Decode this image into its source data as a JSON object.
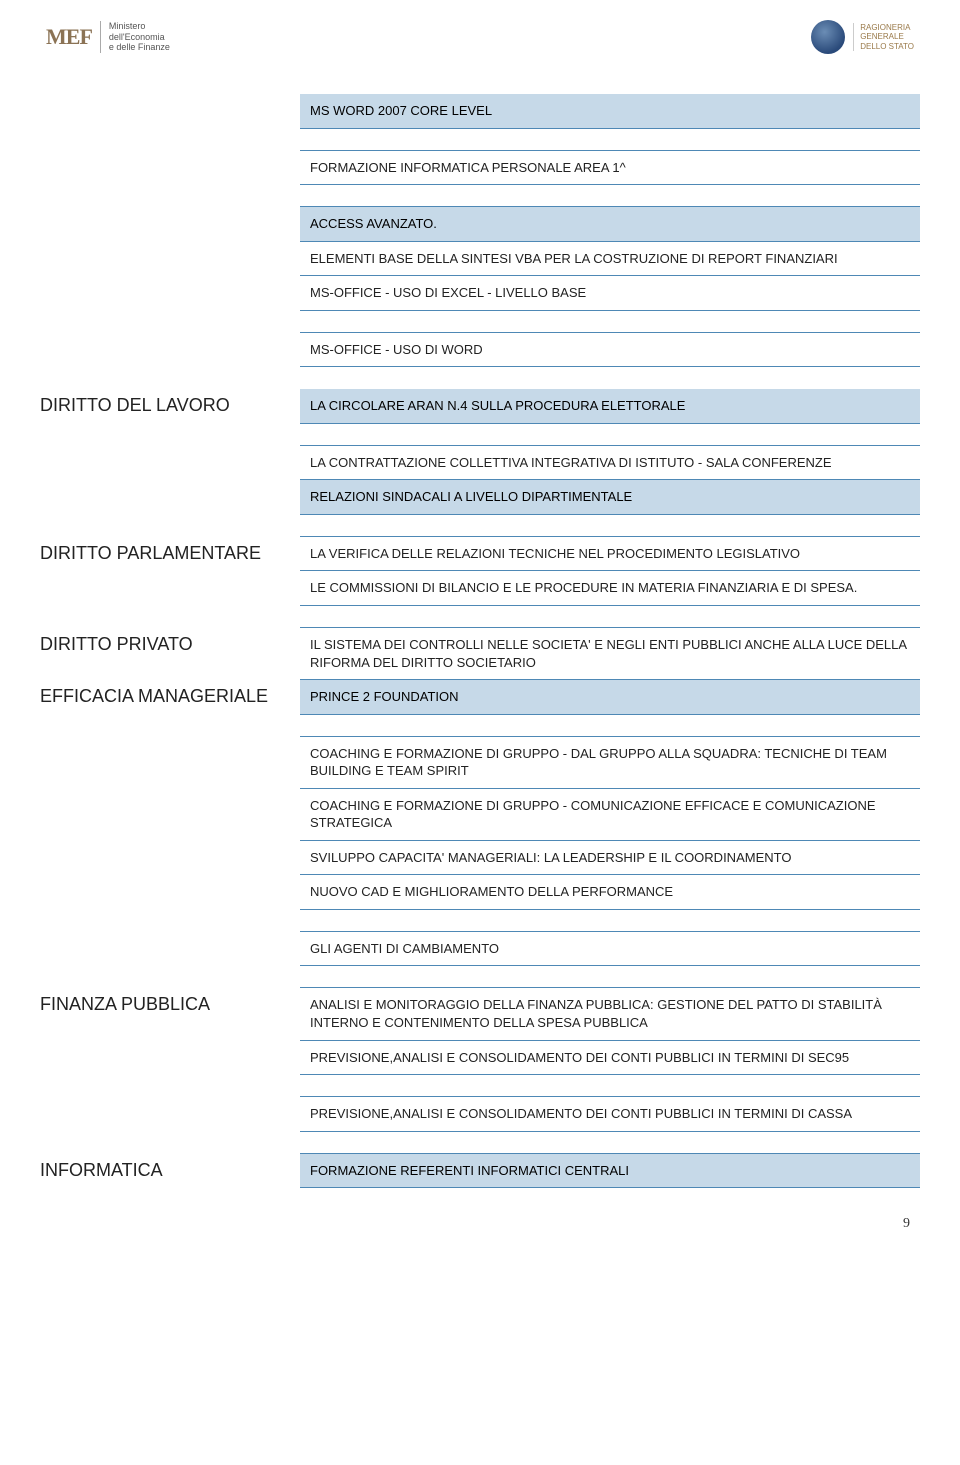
{
  "header": {
    "mef_mark": "MEF",
    "mef_text_l1": "Ministero",
    "mef_text_l2": "dell'Economia",
    "mef_text_l3": "e delle Finanze",
    "rgs_text_l1": "RAGIONERIA",
    "rgs_text_l2": "GENERALE",
    "rgs_text_l3": "DELLO STATO"
  },
  "colors": {
    "header_bg": "#c6d9e8",
    "border": "#4e88b5",
    "text": "#222222"
  },
  "rows": [
    {
      "left": "",
      "right_type": "header",
      "right": "MS WORD 2007 CORE LEVEL"
    },
    {
      "left": "",
      "right_type": "spacer"
    },
    {
      "left": "",
      "right_type": "cell",
      "right": "FORMAZIONE INFORMATICA PERSONALE AREA 1^"
    },
    {
      "left": "",
      "right_type": "spacer"
    },
    {
      "left": "",
      "right_type": "header",
      "right": "ACCESS AVANZATO."
    },
    {
      "left": "",
      "right_type": "cell",
      "right": "ELEMENTI BASE DELLA SINTESI VBA PER LA COSTRUZIONE DI REPORT FINANZIARI"
    },
    {
      "left": "",
      "right_type": "cell",
      "right": "MS-OFFICE - USO DI EXCEL - LIVELLO BASE"
    },
    {
      "left": "",
      "right_type": "spacer"
    },
    {
      "left": "",
      "right_type": "cell",
      "right": "MS-OFFICE - USO DI WORD"
    },
    {
      "left": "",
      "right_type": "gap"
    },
    {
      "left": "DIRITTO DEL LAVORO",
      "right_type": "header",
      "right": "LA CIRCOLARE ARAN N.4 SULLA PROCEDURA ELETTORALE"
    },
    {
      "left": "",
      "right_type": "spacer"
    },
    {
      "left": "",
      "right_type": "cell",
      "right": "LA CONTRATTAZIONE COLLETTIVA INTEGRATIVA DI ISTITUTO - SALA CONFERENZE"
    },
    {
      "left": "",
      "right_type": "header",
      "right": "RELAZIONI SINDACALI A LIVELLO DIPARTIMENTALE"
    },
    {
      "left": "",
      "right_type": "spacer"
    },
    {
      "left": "DIRITTO PARLAMENTARE",
      "right_type": "cell",
      "right": "LA VERIFICA DELLE RELAZIONI TECNICHE NEL PROCEDIMENTO LEGISLATIVO"
    },
    {
      "left": "",
      "right_type": "cell",
      "right": "LE COMMISSIONI DI BILANCIO E LE PROCEDURE IN MATERIA FINANZIARIA E DI SPESA."
    },
    {
      "left": "",
      "right_type": "spacer"
    },
    {
      "left": "DIRITTO PRIVATO",
      "right_type": "cell",
      "right": "IL SISTEMA DEI CONTROLLI NELLE SOCIETA' E NEGLI ENTI PUBBLICI ANCHE ALLA LUCE DELLA RIFORMA DEL DIRITTO SOCIETARIO"
    },
    {
      "left": "EFFICACIA MANAGERIALE",
      "right_type": "header",
      "right": "PRINCE 2 FOUNDATION"
    },
    {
      "left": "",
      "right_type": "spacer"
    },
    {
      "left": "",
      "right_type": "cell",
      "right": "COACHING E FORMAZIONE DI GRUPPO - DAL GRUPPO ALLA SQUADRA: TECNICHE DI TEAM BUILDING E TEAM SPIRIT"
    },
    {
      "left": "",
      "right_type": "cell",
      "right": "COACHING E FORMAZIONE DI GRUPPO - COMUNICAZIONE EFFICACE E COMUNICAZIONE STRATEGICA"
    },
    {
      "left": "",
      "right_type": "cell",
      "right": "SVILUPPO CAPACITA' MANAGERIALI: LA LEADERSHIP E IL COORDINAMENTO"
    },
    {
      "left": "",
      "right_type": "cell",
      "right": "NUOVO CAD E MIGHLIORAMENTO DELLA PERFORMANCE"
    },
    {
      "left": "",
      "right_type": "spacer"
    },
    {
      "left": "",
      "right_type": "cell",
      "right": "GLI AGENTI DI CAMBIAMENTO"
    },
    {
      "left": "",
      "right_type": "spacer"
    },
    {
      "left": "FINANZA PUBBLICA",
      "right_type": "cell",
      "right": "ANALISI E MONITORAGGIO DELLA FINANZA PUBBLICA: GESTIONE DEL PATTO DI STABILITÀ INTERNO E CONTENIMENTO DELLA SPESA PUBBLICA"
    },
    {
      "left": "",
      "right_type": "cell",
      "right": "PREVISIONE,ANALISI E CONSOLIDAMENTO DEI CONTI PUBBLICI IN TERMINI DI SEC95"
    },
    {
      "left": "",
      "right_type": "spacer"
    },
    {
      "left": "",
      "right_type": "cell",
      "right": "PREVISIONE,ANALISI E CONSOLIDAMENTO DEI CONTI PUBBLICI IN TERMINI DI CASSA"
    },
    {
      "left": "",
      "right_type": "spacer"
    },
    {
      "left": "INFORMATICA",
      "right_type": "header",
      "right": "FORMAZIONE REFERENTI INFORMATICI CENTRALI"
    }
  ],
  "page_number": "9"
}
